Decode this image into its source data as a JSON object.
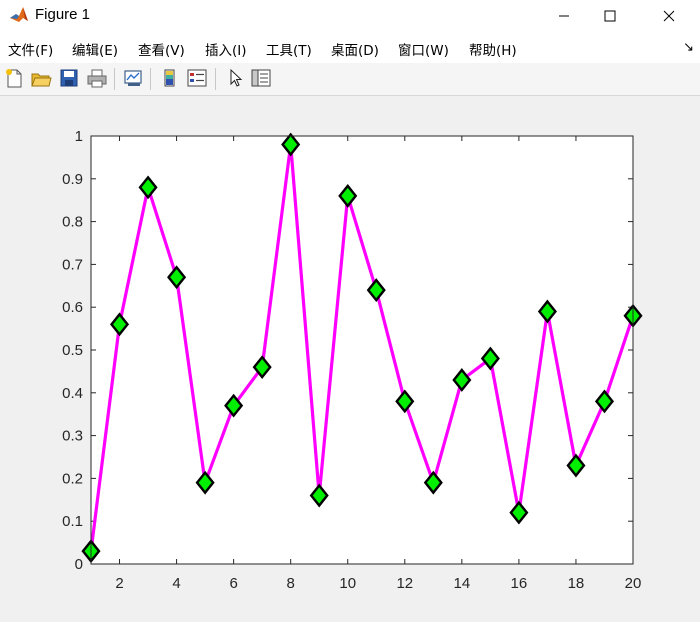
{
  "window": {
    "title": "Figure 1",
    "controls": [
      "minimize",
      "maximize",
      "close"
    ]
  },
  "menubar": {
    "items": [
      {
        "label": "文件(F)"
      },
      {
        "label": "编辑(E)"
      },
      {
        "label": "查看(V)"
      },
      {
        "label": "插入(I)"
      },
      {
        "label": "工具(T)"
      },
      {
        "label": "桌面(D)"
      },
      {
        "label": "窗口(W)"
      },
      {
        "label": "帮助(H)"
      }
    ],
    "overflow_glyph": "↘"
  },
  "toolbar": {
    "buttons": [
      "new-figure-icon",
      "open-file-icon",
      "save-icon",
      "print-icon",
      "link-plot-icon",
      "insert-colorbar-icon",
      "insert-legend-icon",
      "edit-plot-arrow-icon",
      "property-inspector-icon"
    ]
  },
  "colors": {
    "line": "#ff00ff",
    "marker_fill": "#00ee00",
    "marker_edge": "#000000",
    "axes_bg": "#ffffff",
    "figure_bg": "#f0f0f0"
  },
  "chart_data": {
    "type": "line",
    "title": "",
    "xlabel": "",
    "ylabel": "",
    "xlim": [
      1,
      20
    ],
    "ylim": [
      0,
      1
    ],
    "xticks": [
      2,
      4,
      6,
      8,
      10,
      12,
      14,
      16,
      18,
      20
    ],
    "yticks": [
      0,
      0.1,
      0.2,
      0.3,
      0.4,
      0.5,
      0.6,
      0.7,
      0.8,
      0.9,
      1
    ],
    "xtick_labels": [
      "2",
      "4",
      "6",
      "8",
      "10",
      "12",
      "14",
      "16",
      "18",
      "20"
    ],
    "ytick_labels": [
      "0",
      "0.1",
      "0.2",
      "0.3",
      "0.4",
      "0.5",
      "0.6",
      "0.7",
      "0.8",
      "0.9",
      "1"
    ],
    "grid": false,
    "marker": "diamond",
    "series": [
      {
        "x": [
          1,
          2,
          3,
          4,
          5,
          6,
          7,
          8,
          9,
          10,
          11,
          12,
          13,
          14,
          15,
          16,
          17,
          18,
          19,
          20
        ],
        "values": [
          0.03,
          0.56,
          0.88,
          0.67,
          0.19,
          0.37,
          0.46,
          0.98,
          0.16,
          0.86,
          0.64,
          0.38,
          0.19,
          0.43,
          0.48,
          0.12,
          0.59,
          0.23,
          0.38,
          0.58
        ]
      }
    ]
  }
}
